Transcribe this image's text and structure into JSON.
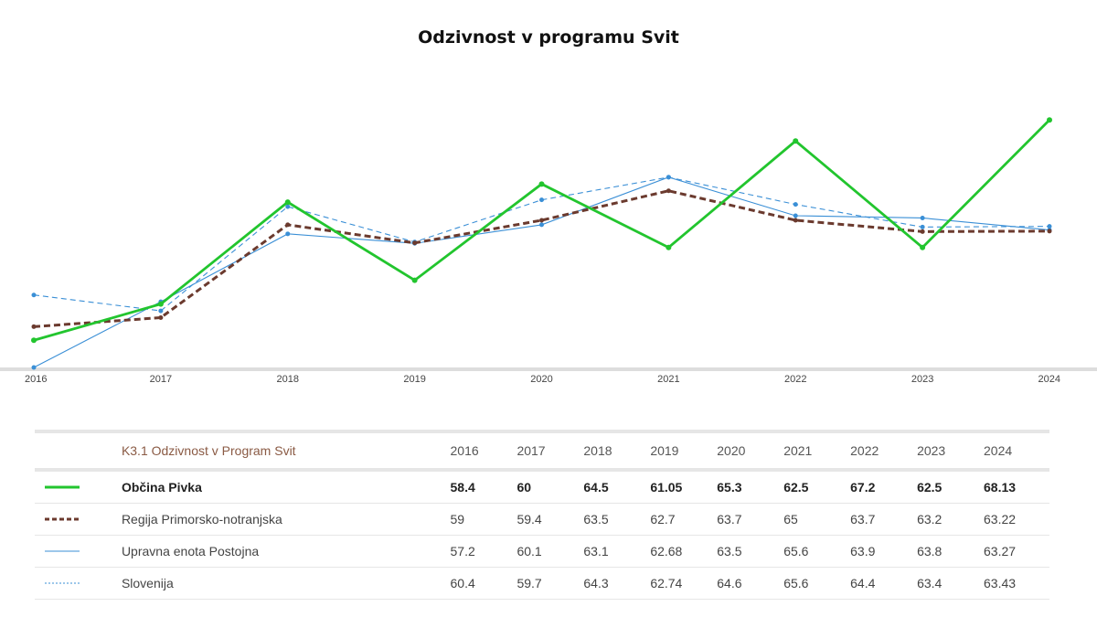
{
  "chart_data": {
    "type": "line",
    "title": "Odzivnost v programu Svit",
    "x": [
      "2016",
      "2017",
      "2018",
      "2019",
      "2020",
      "2021",
      "2022",
      "2023",
      "2024"
    ],
    "ylim": [
      57.2,
      68.3
    ],
    "grid": false,
    "series": [
      {
        "name": "Občina Pivka",
        "values": [
          58.4,
          60,
          64.5,
          61.05,
          65.3,
          62.5,
          67.2,
          62.5,
          68.13
        ],
        "color": "#22c52e",
        "style": "solid-thick"
      },
      {
        "name": "Regija Primorsko-notranjska",
        "values": [
          59,
          59.4,
          63.5,
          62.7,
          63.7,
          65,
          63.7,
          63.2,
          63.22
        ],
        "color": "#6b3a2e",
        "style": "dashed-thick"
      },
      {
        "name": "Upravna enota Postojna",
        "values": [
          57.2,
          60.1,
          63.1,
          62.68,
          63.5,
          65.6,
          63.9,
          63.8,
          63.27
        ],
        "color": "#3a8fd6",
        "style": "solid-thin"
      },
      {
        "name": "Slovenija",
        "values": [
          60.4,
          59.7,
          64.3,
          62.74,
          64.6,
          65.6,
          64.4,
          63.4,
          63.43
        ],
        "color": "#3a8fd6",
        "style": "dashed-thin"
      }
    ]
  },
  "table": {
    "caption": "K3.1 Odzivnost v Program Svit"
  }
}
